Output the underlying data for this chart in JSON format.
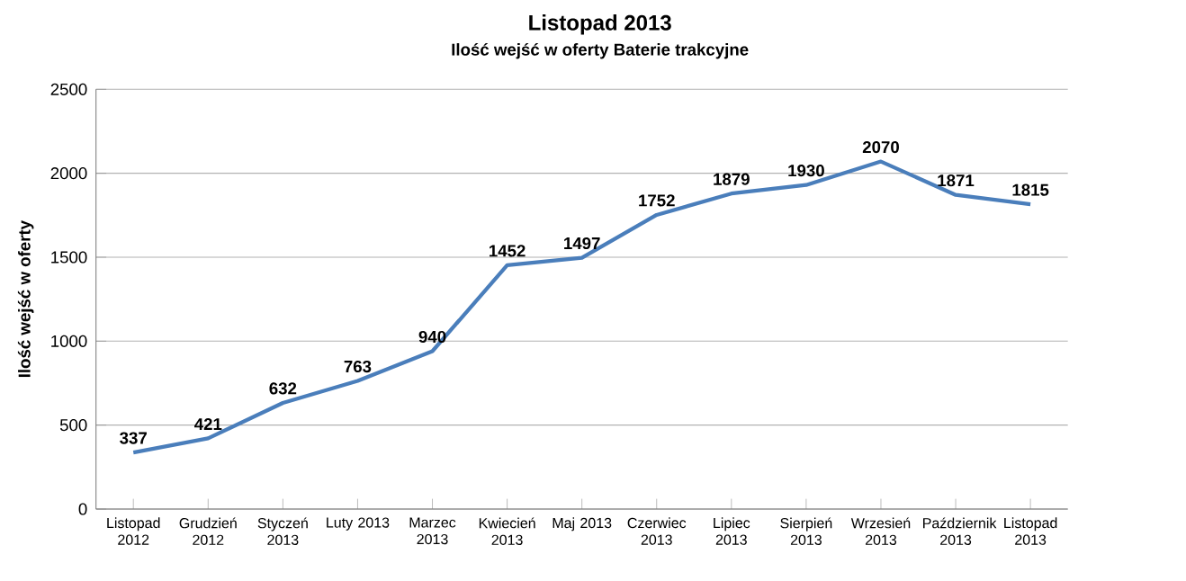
{
  "chart_data": {
    "type": "line",
    "title": "Listopad 2013",
    "subtitle": "Ilość wejść w oferty Baterie trakcyjne",
    "ylabel": "Ilość wejść w oferty",
    "categories": [
      "Listopad 2012",
      "Grudzień 2012",
      "Styczeń 2013",
      "Luty 2013",
      "Marzec 2013",
      "Kwiecień 2013",
      "Maj 2013",
      "Czerwiec 2013",
      "Lipiec 2013",
      "Sierpień 2013",
      "Wrzesień 2013",
      "Październik 2013",
      "Listopad 2013"
    ],
    "values": [
      337,
      421,
      632,
      763,
      940,
      1452,
      1497,
      1752,
      1879,
      1930,
      2070,
      1871,
      1815
    ],
    "color": "#4a7ebb",
    "ylim": [
      0,
      2500
    ],
    "yticks": [
      0,
      500,
      1000,
      1500,
      2000,
      2500
    ],
    "grid": "y",
    "data_labels": true,
    "marker": "none",
    "line_style": "solid"
  }
}
